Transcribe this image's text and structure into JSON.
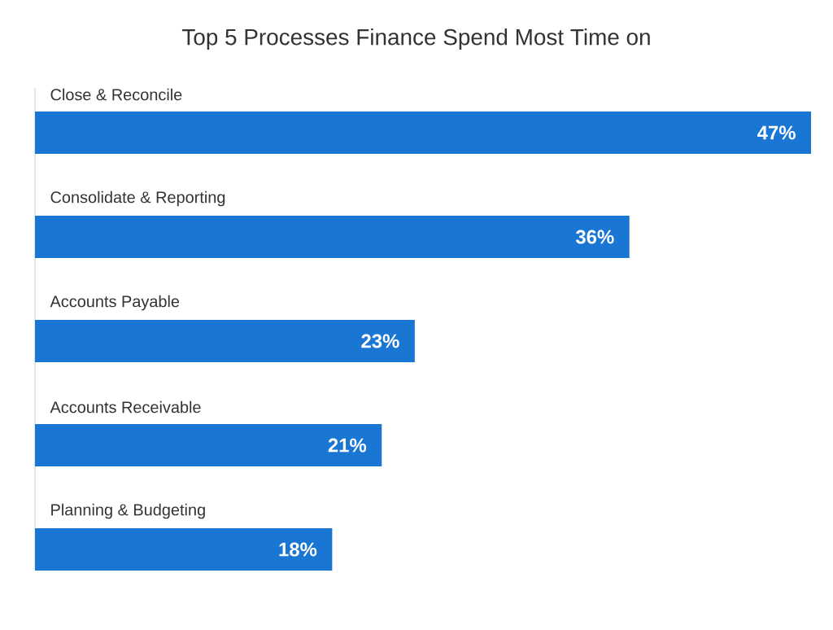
{
  "chart_data": {
    "type": "bar",
    "orientation": "horizontal",
    "title": "Top 5 Processes Finance Spend Most Time on",
    "categories": [
      "Close & Reconcile",
      "Consolidate & Reporting",
      "Accounts Payable",
      "Accounts Receivable",
      "Planning & Budgeting"
    ],
    "values": [
      47,
      36,
      23,
      21,
      18
    ],
    "value_labels": [
      "47%",
      "36%",
      "23%",
      "21%",
      "18%"
    ],
    "color": "#1976d2"
  }
}
